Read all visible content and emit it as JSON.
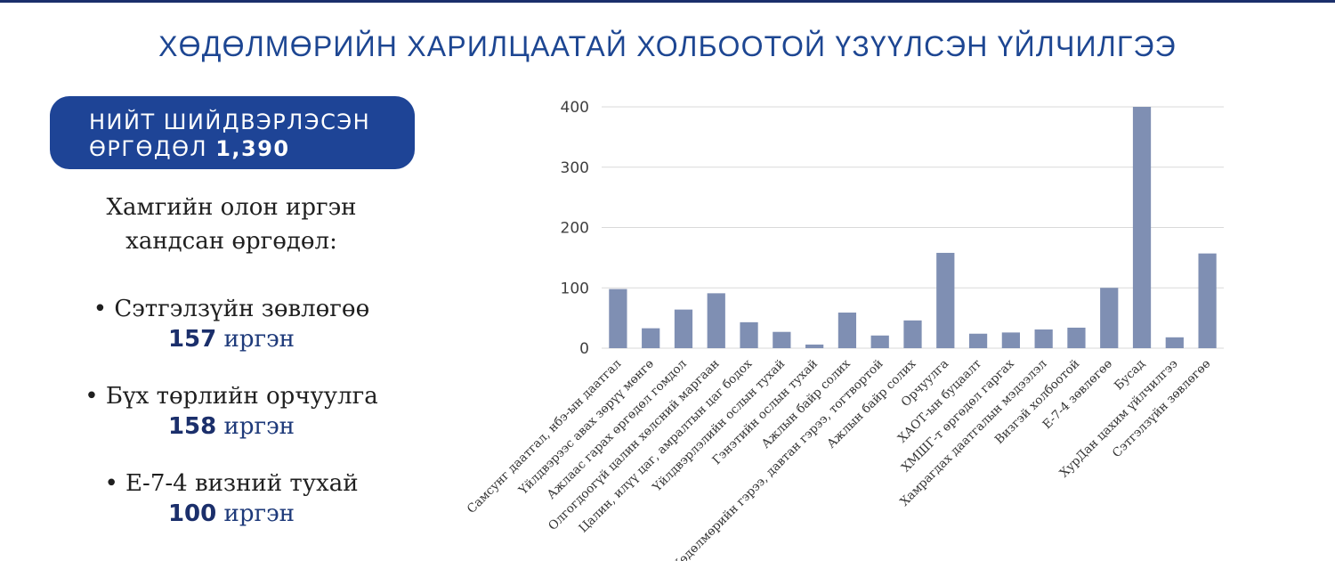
{
  "title": "ХӨДӨЛМӨРИЙН ХАРИЛЦААТАЙ ХОЛБООТОЙ ҮЗҮҮЛСЭН ҮЙЛЧИЛГЭЭ",
  "summary": {
    "label_line1": "НИЙТ ШИЙДВЭРЛЭСЭН",
    "label_line2": "ӨРГӨДӨЛ",
    "total": "1,390"
  },
  "left_panel": {
    "subtitle_line1": "Хамгийн олон иргэн",
    "subtitle_line2": "хандсан өргөдөл:",
    "unit": "иргэн",
    "items": [
      {
        "label": "• Сэтгэлзүйн зөвлөгөө",
        "value": "157"
      },
      {
        "label": "• Бүх төрлийн орчуулга",
        "value": "158"
      },
      {
        "label": "• Е-7-4 визний тухай",
        "value": "100"
      }
    ]
  },
  "colors": {
    "bar": "#7f8fb3",
    "grid": "#d9d9d9",
    "title": "#1d4692",
    "pill": "#1e4496"
  },
  "chart_data": {
    "type": "bar",
    "title": "",
    "xlabel": "",
    "ylabel": "",
    "ylim": [
      0,
      400
    ],
    "yticks": [
      0,
      100,
      200,
      300,
      400
    ],
    "grid": true,
    "categories": [
      "Самсунг даатгал, нбэ-ын даатгал",
      "Үйлдвэрээс авах зөрүү мөнгө",
      "Ажлаас гарах өргөдөл гомдол",
      "Олгогдоогүй цалин хөлсний маргаан",
      "Цалин, илүү цаг, амралтын цаг бодох",
      "Үйлдвэрлэлийн ослын тухай",
      "Гэнэтийн ослын тухай",
      "Ажлын байр солих",
      "Хөдөлмөрийн гэрээ, давтан гэрээ, тогтвортой",
      "Ажлын байр солих",
      "Орчуулга",
      "ХАОТ-ын буцаалт",
      "ХМШГ-т өргөдөл гаргах",
      "Хамрагдах даатгалын мэдээлэл",
      "Визгэй холбоотой",
      "Е-7-4 зөвлөгөө",
      "Бусад",
      "ХурДан цахим үйлчилгээ",
      "Сэтгэлзүйн зөвлөгөө"
    ],
    "values": [
      98,
      33,
      64,
      91,
      43,
      27,
      6,
      59,
      21,
      46,
      158,
      24,
      26,
      31,
      34,
      100,
      400,
      18,
      157
    ]
  }
}
